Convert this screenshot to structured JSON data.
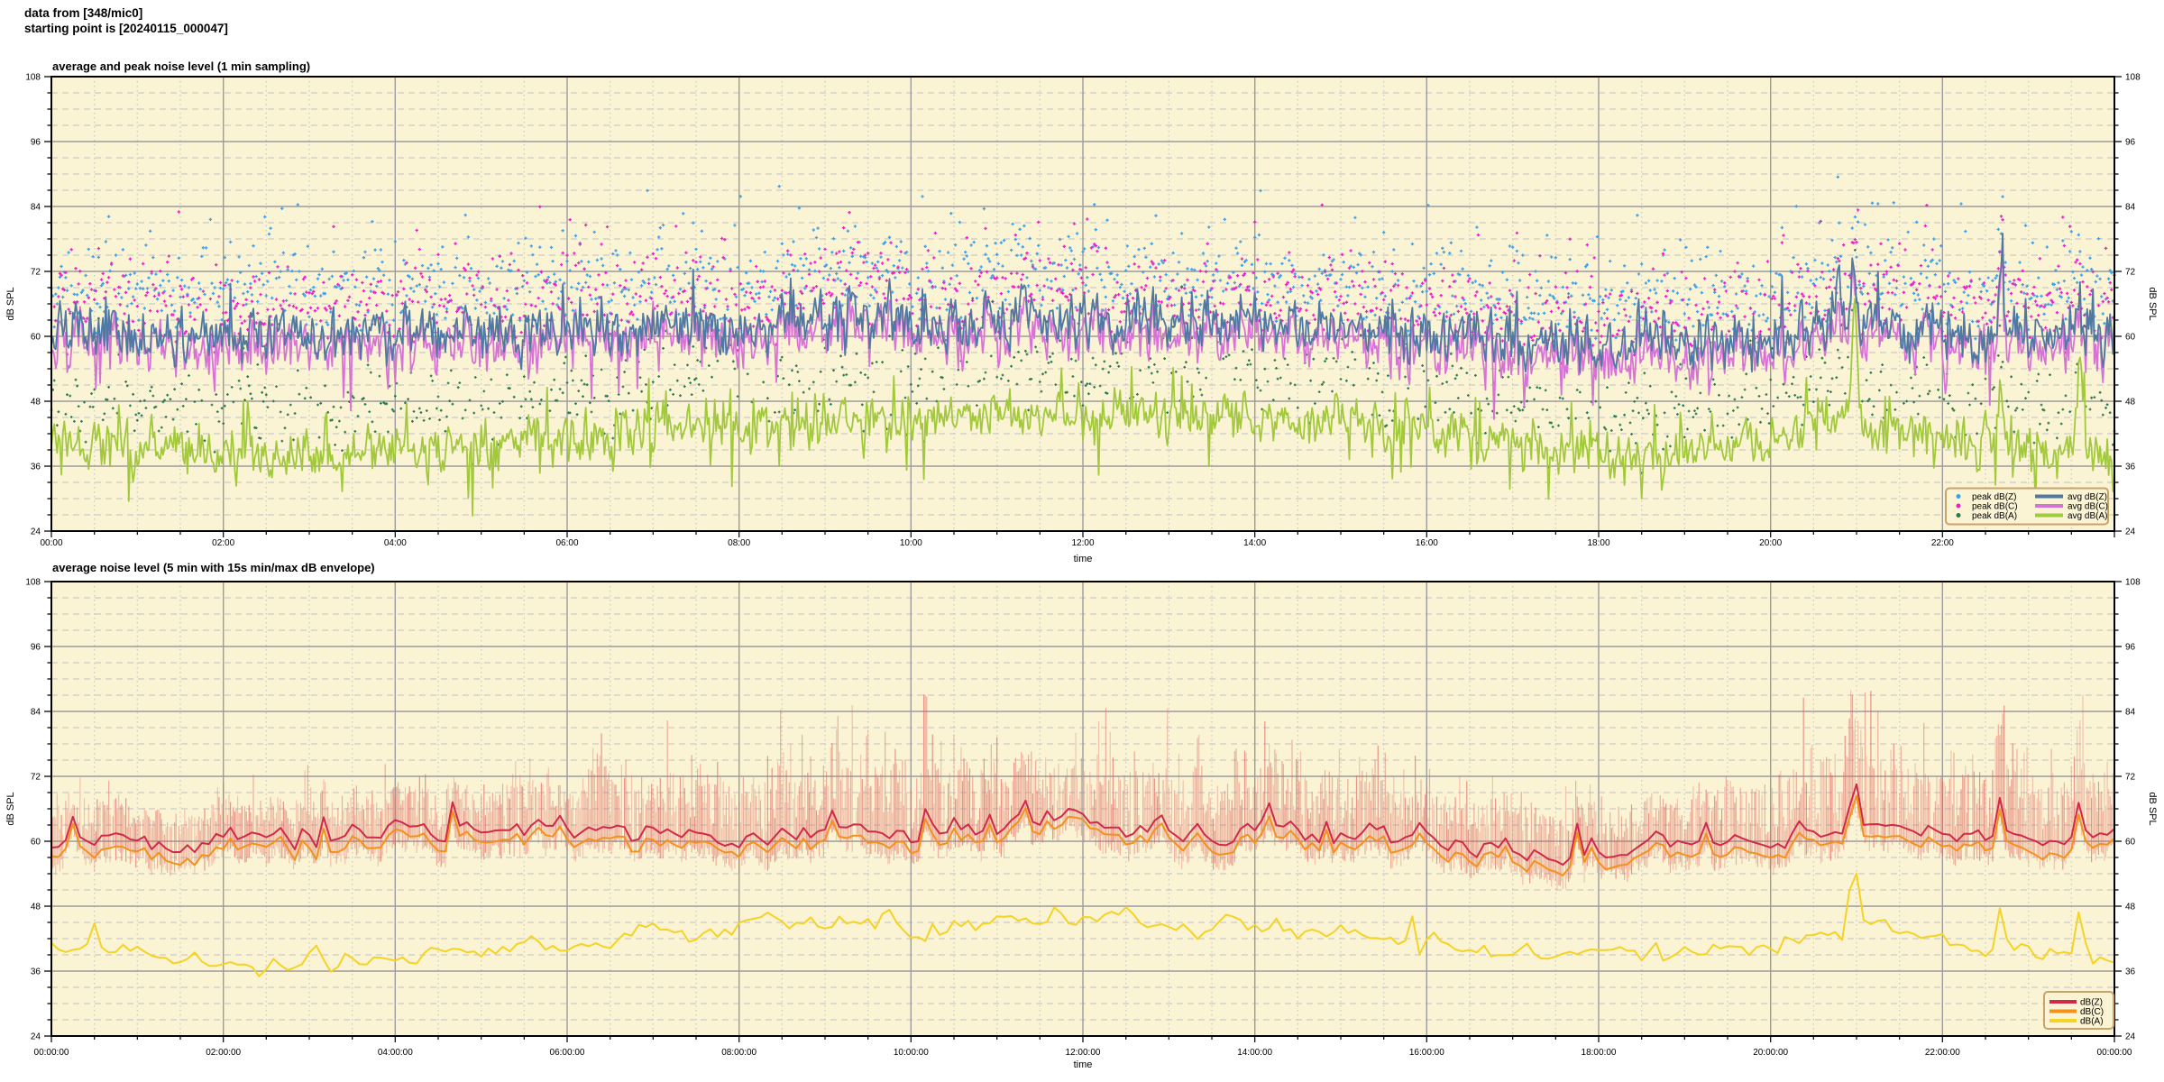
{
  "header": {
    "line1": "data from [348/mic0]",
    "line2": "starting point is [20240115_000047]"
  },
  "palette": {
    "page_bg": "#ffffff",
    "plot_bg": "#faf3d4",
    "grid_major": "#9b9b9b",
    "grid_minor": "#c9c9c9",
    "box_border": "#000000",
    "legend_border": "#c8a36a",
    "text": "#111111"
  },
  "seed": 7,
  "chart_data": [
    {
      "type": "line+scatter",
      "title": "average and peak noise level (1 min sampling)",
      "xlabel": "time",
      "ylabel_left": "dB SPL",
      "ylabel_right": "dB SPL",
      "ylim": [
        24,
        108
      ],
      "ytick_step": 12,
      "y_minor_step": 3,
      "xlim_hours": [
        0,
        24
      ],
      "x_major_hours": 2,
      "x_minor_hours": 0.5,
      "sampling_minutes": 1,
      "x_tick_labels": [
        "00:00",
        "02:00",
        "04:00",
        "06:00",
        "08:00",
        "10:00",
        "12:00",
        "14:00",
        "16:00",
        "18:00",
        "20:00",
        "22:00"
      ],
      "y_tick_labels": [
        "24",
        "36",
        "48",
        "60",
        "72",
        "84",
        "96",
        "108"
      ],
      "legend": {
        "point_entries": [
          {
            "label": "peak dB(Z)",
            "color": "#3da0e8"
          },
          {
            "label": "peak dB(C)",
            "color": "#ef1ec9"
          },
          {
            "label": "peak dB(A)",
            "color": "#2d7a50"
          }
        ],
        "line_entries": [
          {
            "label": "avg dB(Z)",
            "color": "#4f79a2"
          },
          {
            "label": "avg dB(C)",
            "color": "#d873d6"
          },
          {
            "label": "avg dB(A)",
            "color": "#a2c83c"
          }
        ]
      },
      "series": {
        "avg_dbz": {
          "label": "avg dB(Z)",
          "color": "#4f79a2",
          "max_db": 82,
          "hourly_db": [
            60.6,
            60.2,
            60.3,
            60.4,
            60.8,
            61.0,
            61.6,
            62.0,
            62.3,
            62.6,
            62.8,
            63.0,
            62.9,
            62.6,
            62.3,
            61.8,
            61.0,
            59.6,
            58.4,
            58.7,
            59.8,
            62.6,
            60.8,
            60.4,
            60.8
          ],
          "events": [
            {
              "t": 11.3,
              "amp": 6,
              "w": 0.05
            },
            {
              "t": 20.78,
              "amp": 10,
              "w": 0.05
            },
            {
              "t": 20.97,
              "amp": 13,
              "w": 0.04
            },
            {
              "t": 22.68,
              "amp": 13,
              "w": 0.035
            },
            {
              "t": 23.58,
              "amp": 8,
              "w": 0.04
            }
          ]
        },
        "avg_dbc": {
          "label": "avg dB(C)",
          "color": "#d873d6",
          "max_db": 80,
          "hourly_db": [
            58.7,
            58.3,
            58.4,
            58.5,
            58.9,
            59.1,
            59.7,
            60.0,
            60.3,
            60.6,
            60.8,
            61.0,
            60.9,
            60.6,
            60.3,
            59.7,
            58.8,
            57.2,
            55.9,
            56.2,
            57.5,
            60.6,
            58.6,
            58.1,
            58.7
          ],
          "events": [
            {
              "t": 11.3,
              "amp": 5,
              "w": 0.05
            },
            {
              "t": 20.78,
              "amp": 9,
              "w": 0.05
            },
            {
              "t": 20.97,
              "amp": 12,
              "w": 0.04
            },
            {
              "t": 22.68,
              "amp": 12,
              "w": 0.035
            },
            {
              "t": 23.58,
              "amp": 7,
              "w": 0.04
            }
          ]
        },
        "avg_dba": {
          "label": "avg dB(A)",
          "color": "#a2c83c",
          "max_db": 67,
          "hourly_db": [
            39.6,
            38.9,
            38.5,
            38.6,
            39.1,
            39.8,
            41.4,
            42.8,
            43.4,
            44.2,
            44.8,
            45.4,
            45.1,
            44.7,
            44.5,
            44.1,
            42.8,
            40.0,
            38.0,
            38.5,
            40.6,
            45.0,
            41.0,
            39.4,
            37.2
          ],
          "events": [
            {
              "t": 20.5,
              "amp": 5,
              "w": 0.1
            },
            {
              "t": 20.97,
              "amp": 20,
              "w": 0.04
            },
            {
              "t": 22.68,
              "amp": 10,
              "w": 0.04
            },
            {
              "t": 23.6,
              "amp": 16,
              "w": 0.05
            }
          ]
        },
        "peak_dbz": {
          "label": "peak dB(Z)",
          "color": "#3da0e8",
          "offset_db": [
            3.5,
            12
          ],
          "tail_db": 16,
          "max_db": 91.5
        },
        "peak_dbc": {
          "label": "peak dB(C)",
          "color": "#ef1ec9",
          "offset_db": [
            3,
            11.5
          ],
          "tail_db": 15,
          "max_db": 90.5
        },
        "peak_dba": {
          "label": "peak dB(A)",
          "color": "#2d7a50",
          "offset_db": [
            3.5,
            11.5
          ],
          "tail_db": 13,
          "max_db": 80
        }
      }
    },
    {
      "type": "line+envelope",
      "title": "average noise level (5 min with 15s min/max dB envelope)",
      "xlabel": "time",
      "ylabel_left": "dB SPL",
      "ylabel_right": "dB SPL",
      "ylim": [
        24,
        108
      ],
      "ytick_step": 12,
      "y_minor_step": 3,
      "xlim_hours": [
        0,
        24
      ],
      "x_major_hours": 2,
      "x_minor_hours": 0.5,
      "sampling_minutes": 5,
      "x_tick_labels": [
        "00:00:00",
        "02:00:00",
        "04:00:00",
        "06:00:00",
        "08:00:00",
        "10:00:00",
        "12:00:00",
        "14:00:00",
        "16:00:00",
        "18:00:00",
        "20:00:00",
        "22:00:00",
        "00:00:00"
      ],
      "y_tick_labels": [
        "24",
        "36",
        "48",
        "60",
        "72",
        "84",
        "96",
        "108"
      ],
      "legend": {
        "line_entries": [
          {
            "label": "dB(Z)",
            "color": "#d12a48"
          },
          {
            "label": "dB(C)",
            "color": "#f3921b"
          },
          {
            "label": "dB(A)",
            "color": "#f4d325"
          }
        ]
      },
      "series": {
        "dbz": {
          "label": "dB(Z)",
          "color": "#d12a48",
          "hourly_db": [
            60.6,
            60.2,
            60.3,
            60.4,
            60.8,
            61.0,
            61.6,
            62.0,
            62.3,
            62.6,
            62.8,
            63.0,
            62.9,
            62.6,
            62.3,
            61.8,
            61.0,
            59.6,
            58.4,
            58.7,
            59.8,
            62.6,
            60.8,
            60.4,
            60.8
          ],
          "events": [
            {
              "t": 11.3,
              "amp": 7,
              "w": 0.05
            },
            {
              "t": 20.97,
              "amp": 11,
              "w": 0.06
            },
            {
              "t": 22.68,
              "amp": 7,
              "w": 0.05
            },
            {
              "t": 23.58,
              "amp": 5,
              "w": 0.05
            }
          ]
        },
        "dbc": {
          "label": "dB(C)",
          "color": "#f3921b",
          "gap_below_dbz_db": 1.9
        },
        "dba": {
          "label": "dB(A)",
          "color": "#f4d325",
          "hourly_db": [
            39.6,
            38.9,
            38.5,
            38.6,
            39.1,
            39.8,
            41.4,
            42.8,
            43.4,
            44.2,
            44.8,
            45.4,
            45.1,
            44.7,
            44.5,
            44.1,
            42.8,
            40.0,
            38.0,
            38.5,
            40.6,
            45.0,
            41.0,
            39.4,
            37.2
          ],
          "events": [
            {
              "t": 20.97,
              "amp": 13,
              "w": 0.07
            },
            {
              "t": 22.68,
              "amp": 6,
              "w": 0.05
            },
            {
              "t": 23.6,
              "amp": 10,
              "w": 0.06
            }
          ]
        },
        "envelope": {
          "label": "15s min/max envelope",
          "color": "#dd645f",
          "max_db_clamp": 88,
          "max_above_avg_db_hourly": [
            9,
            8,
            8,
            8,
            9,
            10,
            13,
            16,
            17,
            18,
            19,
            19,
            18,
            18,
            17,
            16,
            14,
            12,
            11,
            11,
            14,
            20,
            13,
            13,
            18
          ],
          "min_below_avg_db": [
            2.0,
            5.0
          ],
          "events": [
            {
              "t": 20.97,
              "amp": 8,
              "w": 0.1
            },
            {
              "t": 22.68,
              "amp": 8,
              "w": 0.08
            },
            {
              "t": 23.6,
              "amp": 10,
              "w": 0.1
            }
          ]
        }
      }
    }
  ]
}
